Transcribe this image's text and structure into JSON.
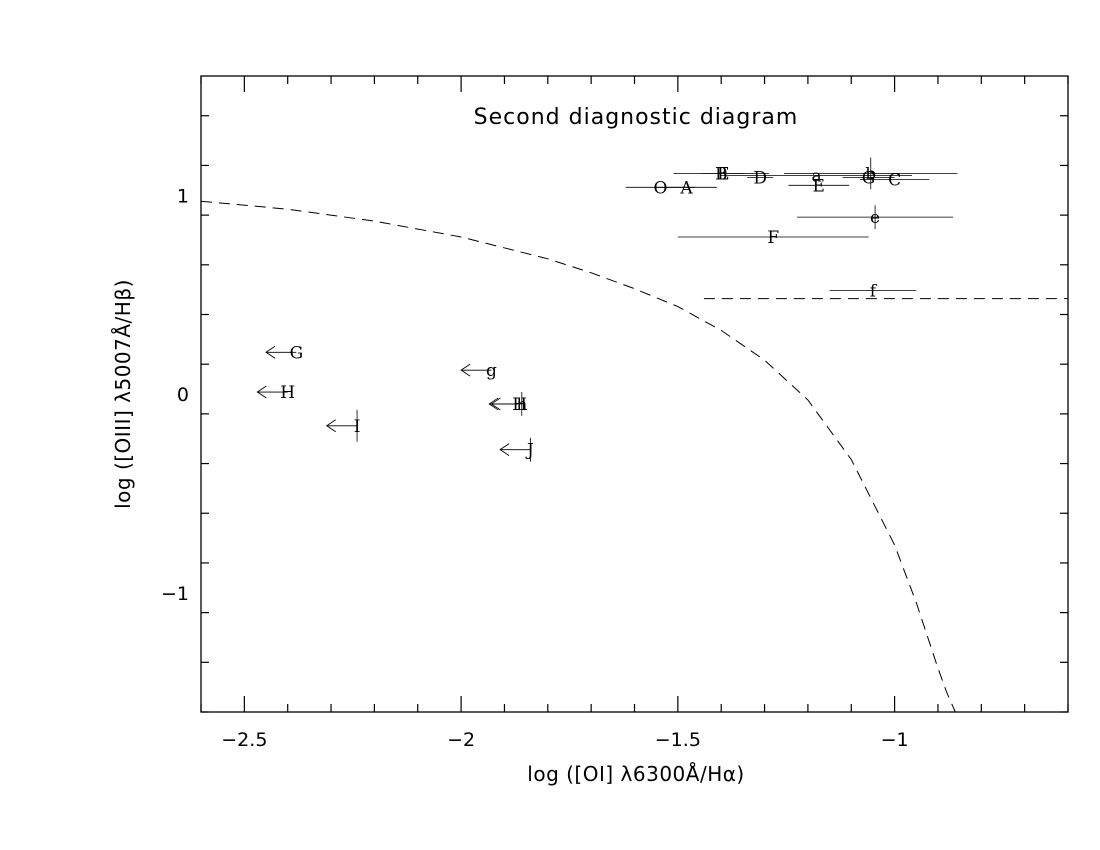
{
  "chart_data": {
    "type": "scatter",
    "title": "Second diagnostic diagram",
    "xlabel": "log ([OI] λ6300Å/Hα)",
    "ylabel": "log ([OIII] λ5007Å/Hβ)",
    "xlim": [
      -2.6,
      -0.6
    ],
    "ylim": [
      -1.6,
      1.6
    ],
    "x_ticks": [
      {
        "value": -2.5,
        "label": "−2.5"
      },
      {
        "value": -2,
        "label": "−2"
      },
      {
        "value": -1.5,
        "label": "−1.5"
      },
      {
        "value": -1,
        "label": "−1"
      }
    ],
    "y_ticks": [
      {
        "value": 1,
        "label": "1"
      },
      {
        "value": 0,
        "label": "0"
      },
      {
        "value": -1,
        "label": "−1"
      }
    ],
    "grid": false,
    "points": [
      {
        "label": "O",
        "x": -1.54,
        "y": 1.04,
        "xerr": 0.08,
        "yerr": 0,
        "upper_limit": false
      },
      {
        "label": "A",
        "x": -1.48,
        "y": 1.04,
        "xerr": 0.07,
        "yerr": 0,
        "upper_limit": false
      },
      {
        "label": "B",
        "x": -1.4,
        "y": 1.11,
        "xerr": 0.11,
        "yerr": 0,
        "upper_limit": false
      },
      {
        "label": "E",
        "x": -1.395,
        "y": 1.11,
        "xerr": 0.05,
        "yerr": 0,
        "upper_limit": false
      },
      {
        "label": "D",
        "x": -1.31,
        "y": 1.09,
        "xerr": 0.03,
        "yerr": 0,
        "upper_limit": false
      },
      {
        "label": "a",
        "x": -1.18,
        "y": 1.1,
        "xerr": 0.22,
        "yerr": 0,
        "upper_limit": false
      },
      {
        "label": "E",
        "x": -1.175,
        "y": 1.05,
        "xerr": 0.07,
        "yerr": 0,
        "upper_limit": false
      },
      {
        "label": "b",
        "x": -1.055,
        "y": 1.11,
        "xerr": 0.2,
        "yerr": 0.08,
        "upper_limit": false
      },
      {
        "label": "G",
        "x": -1.06,
        "y": 1.09,
        "xerr": 0.06,
        "yerr": 0,
        "upper_limit": false
      },
      {
        "label": "C",
        "x": -1.0,
        "y": 1.08,
        "xerr": 0.08,
        "yerr": 0,
        "upper_limit": false
      },
      {
        "label": "e",
        "x": -1.045,
        "y": 0.89,
        "xerr": 0.18,
        "yerr": 0.06,
        "upper_limit": false
      },
      {
        "label": "F",
        "x": -1.28,
        "y": 0.79,
        "xerr": 0.22,
        "yerr": 0,
        "upper_limit": false
      },
      {
        "label": "f",
        "x": -1.05,
        "y": 0.52,
        "xerr": 0.1,
        "yerr": 0,
        "upper_limit": false
      },
      {
        "label": "G",
        "x": -2.38,
        "y": 0.21,
        "xerr": 0.05,
        "yerr": 0,
        "upper_limit": true
      },
      {
        "label": "H",
        "x": -2.4,
        "y": 0.01,
        "xerr": 0.05,
        "yerr": 0,
        "upper_limit": true
      },
      {
        "label": "I",
        "x": -2.24,
        "y": -0.16,
        "xerr": 0.05,
        "yerr": 0.08,
        "upper_limit": true
      },
      {
        "label": "g",
        "x": -1.93,
        "y": 0.12,
        "xerr": 0.06,
        "yerr": 0,
        "upper_limit": true
      },
      {
        "label": "h",
        "x": -1.86,
        "y": -0.05,
        "xerr": 0.05,
        "yerr": 0.06,
        "upper_limit": true
      },
      {
        "label": "H",
        "x": -1.865,
        "y": -0.05,
        "xerr": 0.05,
        "yerr": 0,
        "upper_limit": true
      },
      {
        "label": "J",
        "x": -1.84,
        "y": -0.28,
        "xerr": 0.05,
        "yerr": 0.06,
        "upper_limit": true
      }
    ],
    "curves": [
      {
        "style": "dashed",
        "x": [
          -2.6,
          -2.4,
          -2.2,
          -2.0,
          -1.8,
          -1.7,
          -1.6,
          -1.5,
          -1.4,
          -1.3,
          -1.2,
          -1.1,
          -1.0,
          -0.95,
          -0.9,
          -0.88,
          -0.86
        ],
        "y": [
          0.97,
          0.93,
          0.87,
          0.79,
          0.68,
          0.61,
          0.53,
          0.44,
          0.32,
          0.17,
          -0.03,
          -0.33,
          -0.76,
          -1.05,
          -1.38,
          -1.5,
          -1.6
        ]
      },
      {
        "style": "dashed",
        "x": [
          -1.44,
          -0.6
        ],
        "y": [
          0.48,
          0.48
        ]
      }
    ]
  }
}
